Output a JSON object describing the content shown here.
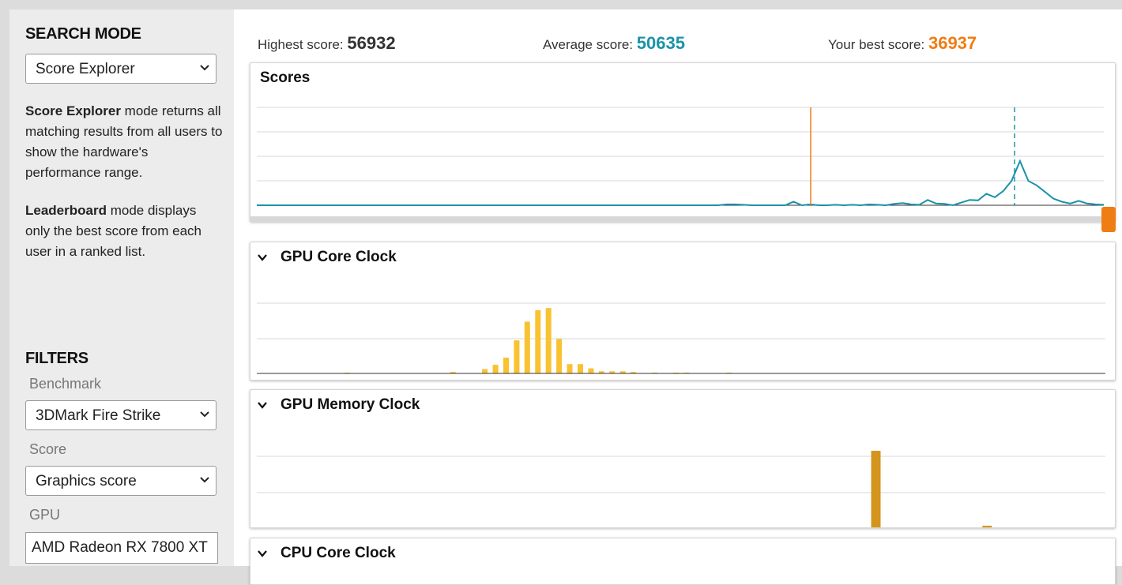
{
  "sidebar": {
    "search_mode_heading": "SEARCH MODE",
    "search_mode_value": "Score Explorer",
    "desc1_bold": "Score Explorer",
    "desc1_rest": " mode returns all matching results from all users to show the hardware's performance range.",
    "desc2_bold": "Leaderboard",
    "desc2_rest": " mode displays only the best score from each user in a ranked list.",
    "filters_heading": "FILTERS",
    "benchmark_label": "Benchmark",
    "benchmark_value": "3DMark Fire Strike",
    "score_label": "Score",
    "score_value": "Graphics score",
    "gpu_label": "GPU",
    "gpu_value": "AMD Radeon RX 7800 XT"
  },
  "scores": {
    "highest_label": "Highest score:",
    "highest_value": "56932",
    "average_label": "Average score:",
    "average_value": "50635",
    "best_label": "Your best score:",
    "best_value": "36937"
  },
  "colors": {
    "accent_teal": "#1a93a8",
    "accent_orange": "#f07c14",
    "gpu_core_bar": "#f9c230",
    "gpu_mem_bar": "#d4951e"
  },
  "panels": {
    "scores_title": "Scores",
    "gpu_core_title": "GPU Core Clock",
    "gpu_mem_title": "GPU Memory Clock",
    "cpu_core_title": "CPU Core Clock"
  },
  "chart_data": [
    {
      "type": "line",
      "title": "Scores",
      "note_markers": {
        "your_best_score": 36937,
        "average_score": 50635
      },
      "x_range": [
        0,
        100
      ],
      "series": [
        {
          "values": [
            0,
            0,
            0,
            0,
            0,
            0,
            0,
            0,
            0,
            0,
            0,
            0,
            0,
            0,
            0,
            0,
            0,
            0,
            0,
            0,
            0,
            0,
            0,
            0,
            0,
            0,
            0,
            0,
            0,
            0,
            0,
            0,
            0,
            0,
            0,
            0,
            0,
            0,
            0,
            0,
            0,
            0,
            0,
            0,
            0,
            0,
            0,
            0,
            0,
            0,
            0,
            0,
            0,
            0,
            0,
            0,
            0.02,
            0.02,
            0.01,
            0,
            0,
            0,
            0,
            0,
            0.08,
            0,
            0.02,
            0,
            0,
            0.01,
            0,
            0.01,
            0,
            0.02,
            0.01,
            0,
            0.03,
            0.05,
            0.02,
            0.01,
            0.12,
            0.04,
            0.03,
            0,
            0.06,
            0.12,
            0.11,
            0.26,
            0.18,
            0.32,
            0.55,
            1.0,
            0.55,
            0.45,
            0.3,
            0.15,
            0.08,
            0.04,
            0.1,
            0.04,
            0.02,
            0.01
          ]
        }
      ]
    },
    {
      "type": "bar",
      "title": "GPU Core Clock",
      "values": [
        0,
        0,
        0,
        0,
        0,
        0,
        0,
        0,
        0.01,
        0,
        0,
        0,
        0,
        0,
        0,
        0,
        0,
        0,
        0.02,
        0,
        0,
        0.06,
        0.12,
        0.22,
        0.46,
        0.72,
        0.88,
        0.91,
        0.48,
        0.13,
        0.13,
        0.07,
        0.03,
        0.03,
        0.03,
        0.02,
        0,
        0.01,
        0,
        0.01,
        0.01,
        0,
        0,
        0,
        0.01,
        0,
        0,
        0,
        0,
        0,
        0,
        0,
        0,
        0,
        0,
        0,
        0,
        0,
        0,
        0,
        0,
        0,
        0,
        0,
        0,
        0,
        0,
        0,
        0,
        0,
        0,
        0,
        0,
        0,
        0,
        0,
        0,
        0,
        0,
        0
      ]
    },
    {
      "type": "bar",
      "title": "GPU Memory Clock",
      "values": [
        0,
        0,
        0,
        0,
        0,
        0,
        0,
        0,
        0,
        0,
        0,
        0,
        0,
        0,
        0,
        0,
        0,
        0,
        0,
        0,
        0.02,
        0,
        0,
        0.01,
        0,
        0,
        0,
        0.01,
        0,
        0,
        0,
        0,
        0,
        0,
        0,
        0,
        0,
        0,
        0,
        0,
        0,
        0.01,
        0,
        0.02,
        1.0,
        0.01,
        0,
        0.01,
        0,
        0,
        0.03,
        0,
        0.06,
        0,
        0,
        0,
        0,
        0,
        0,
        0,
        0
      ]
    }
  ]
}
